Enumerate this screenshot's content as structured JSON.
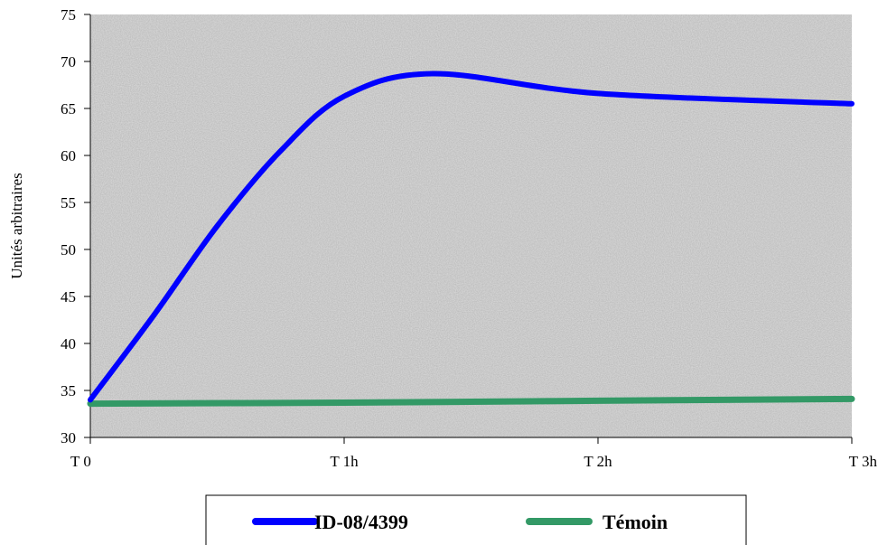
{
  "chart_data": {
    "type": "line",
    "title": "",
    "xlabel": "",
    "ylabel": "Unités arbitraires",
    "categories": [
      "T 0",
      "T 1h",
      "T 2h",
      "T 3h"
    ],
    "ylim": [
      30,
      75
    ],
    "yticks": [
      30,
      35,
      40,
      45,
      50,
      55,
      60,
      65,
      70,
      75
    ],
    "grid": false,
    "legend": "bottom",
    "series": [
      {
        "name": "ID-08/4399",
        "color": "#0000ff",
        "x": [
          0,
          0.25,
          0.5,
          0.75,
          1.0,
          1.35,
          2.0,
          3.0
        ],
        "values": [
          34,
          43,
          52.5,
          60.5,
          66.3,
          68.7,
          66.6,
          65.5
        ]
      },
      {
        "name": "Témoin",
        "color": "#339966",
        "x": [
          0,
          1,
          2,
          3
        ],
        "values": [
          33.6,
          33.7,
          33.9,
          34.1
        ]
      }
    ]
  }
}
